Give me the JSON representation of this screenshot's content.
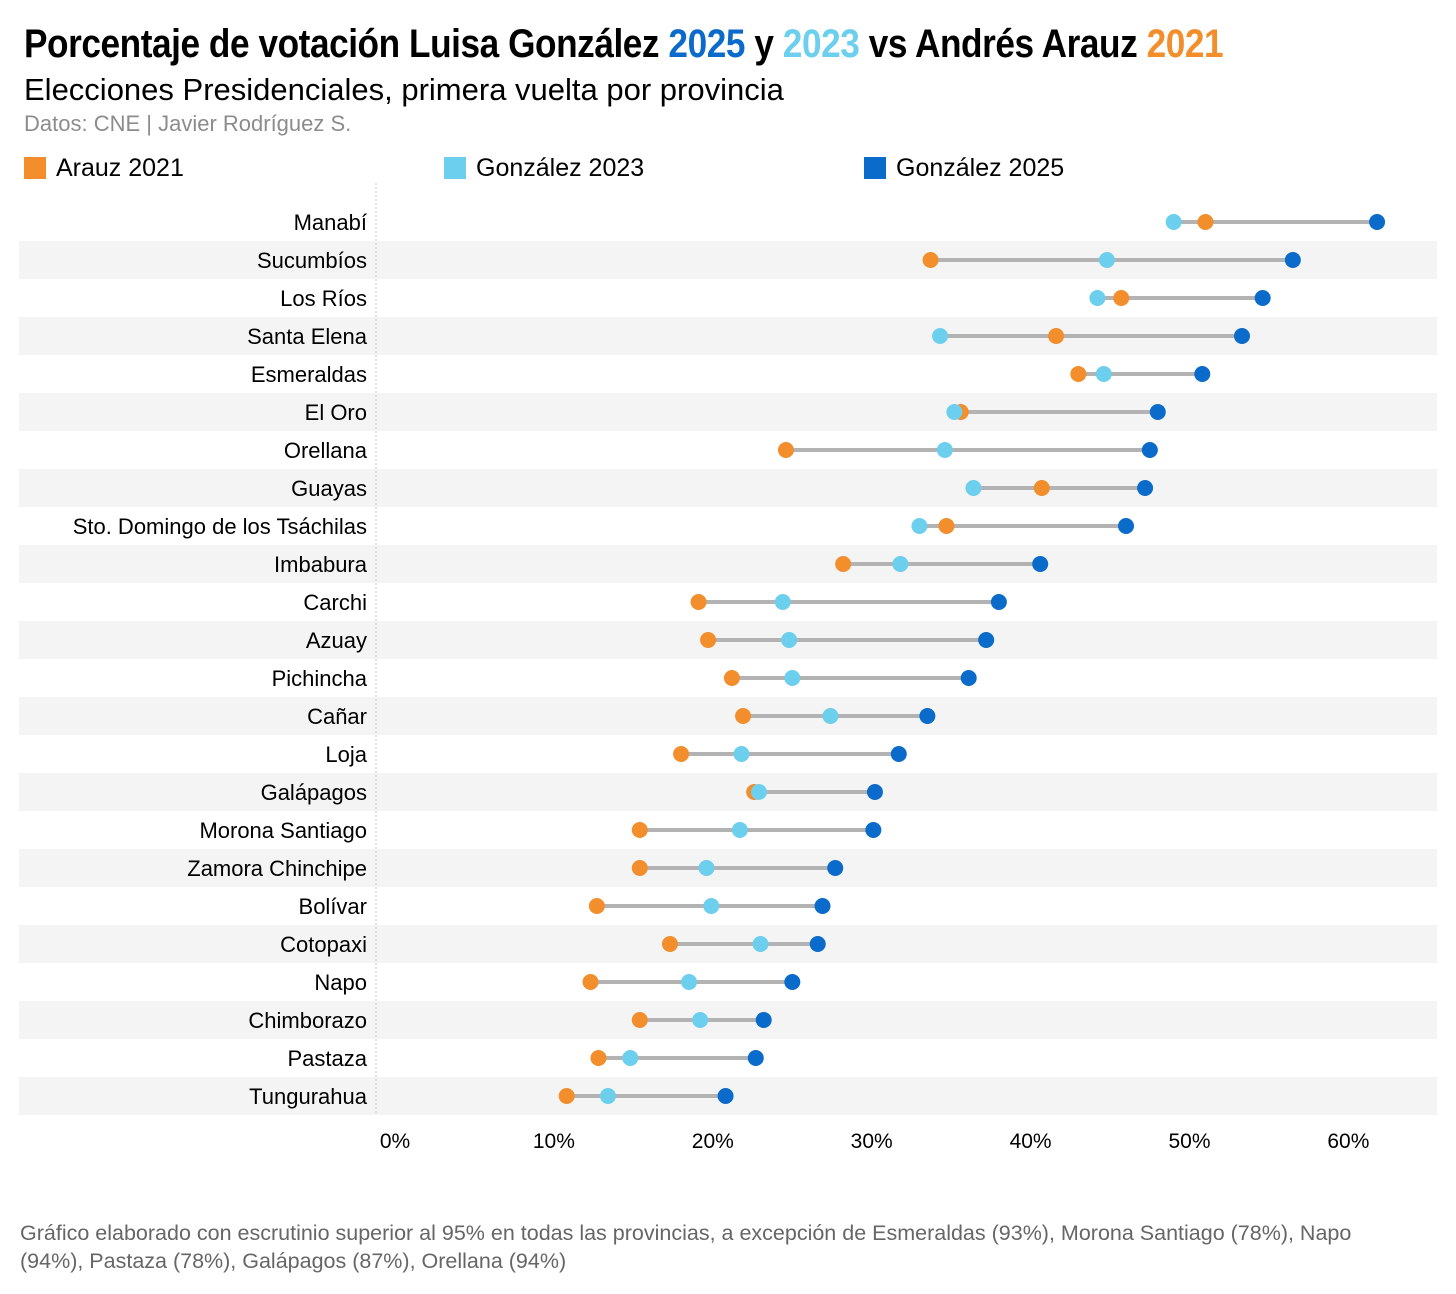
{
  "header": {
    "title_prefix": "Porcentaje de votación Luisa González ",
    "title_year_2025": "2025",
    "title_y": " y ",
    "title_year_2023": "2023",
    "title_vs": " vs Andrés Arauz ",
    "title_year_2021": "2021",
    "subtitle": "Elecciones Presidenciales, primera vuelta por provincia",
    "source": "Datos: CNE | Javier Rodríguez S."
  },
  "colors": {
    "arauz_2021": "#F28E2B",
    "gonzalez_2023": "#6CCFEE",
    "gonzalez_2025": "#0B6BCB",
    "connector": "#b3b3b3",
    "band": "#f4f4f4"
  },
  "legend": {
    "arauz_2021": "Arauz 2021",
    "gonzalez_2023": "González 2023",
    "gonzalez_2025": "González 2025"
  },
  "footnote": "Gráfico elaborado con escrutinio superior al 95% en todas las provincias, a excepción de Esmeraldas (93%), Morona Santiago (78%), Napo (94%), Pastaza (78%), Galápagos (87%), Orellana (94%)",
  "chart_data": {
    "type": "dumbbell",
    "title": "Porcentaje de votación Luisa González 2025 y 2023 vs Andrés Arauz 2021",
    "xlabel": "",
    "ylabel": "",
    "xlim": [
      0,
      66
    ],
    "xticks": [
      0,
      10,
      20,
      30,
      40,
      50,
      60
    ],
    "xtick_labels": [
      "0%",
      "10%",
      "20%",
      "30%",
      "40%",
      "50%",
      "60%"
    ],
    "categories": [
      "Manabí",
      "Sucumbíos",
      "Los Ríos",
      "Santa Elena",
      "Esmeraldas",
      "El Oro",
      "Orellana",
      "Guayas",
      "Sto. Domingo de los Tsáchilas",
      "Imbabura",
      "Carchi",
      "Azuay",
      "Pichincha",
      "Cañar",
      "Loja",
      "Galápagos",
      "Morona Santiago",
      "Zamora Chinchipe",
      "Bolívar",
      "Cotopaxi",
      "Napo",
      "Chimborazo",
      "Pastaza",
      "Tungurahua"
    ],
    "series": [
      {
        "name": "Arauz 2021",
        "key": "arauz_2021",
        "values": [
          52.2,
          34.9,
          46.9,
          42.8,
          44.2,
          36.8,
          25.8,
          41.9,
          35.9,
          29.4,
          20.3,
          20.9,
          22.4,
          23.1,
          19.2,
          23.8,
          16.6,
          16.6,
          13.9,
          18.5,
          13.5,
          16.6,
          14.0,
          12.0
        ]
      },
      {
        "name": "González 2023",
        "key": "gonzalez_2023",
        "values": [
          50.2,
          46.0,
          45.4,
          35.5,
          45.8,
          36.4,
          35.8,
          37.6,
          34.2,
          33.0,
          25.6,
          26.0,
          26.2,
          28.6,
          23.0,
          24.1,
          22.9,
          20.8,
          21.1,
          24.2,
          19.7,
          20.4,
          16.0,
          14.6
        ]
      },
      {
        "name": "González 2025",
        "key": "gonzalez_2025",
        "values": [
          63.0,
          57.7,
          55.8,
          54.5,
          52.0,
          49.2,
          48.7,
          48.4,
          47.2,
          41.8,
          39.2,
          38.4,
          37.3,
          34.7,
          32.9,
          31.4,
          31.3,
          28.9,
          28.1,
          27.8,
          26.2,
          24.4,
          23.9,
          22.0
        ]
      }
    ]
  }
}
